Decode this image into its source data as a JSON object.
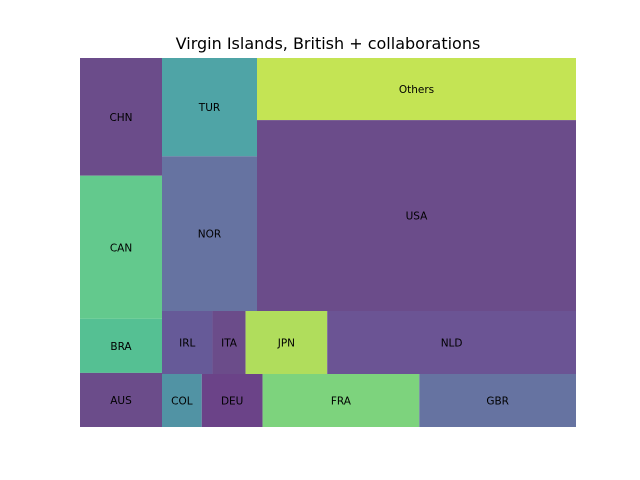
{
  "chart_data": {
    "type": "treemap",
    "title": "Virgin Islands, British + collaborations",
    "cells": [
      {
        "label": "CHN",
        "value": 37.0,
        "color": "#6b4c8a"
      },
      {
        "label": "CAN",
        "value": 45.0,
        "color": "#63c98d"
      },
      {
        "label": "BRA",
        "value": 17.0,
        "color": "#55c093"
      },
      {
        "label": "AUS",
        "value": 17.0,
        "color": "#6b4c8a"
      },
      {
        "label": "TUR",
        "value": 37.5,
        "color": "#4fa4a6"
      },
      {
        "label": "NOR",
        "value": 59.0,
        "color": "#6673a1"
      },
      {
        "label": "Others",
        "value": 82.0,
        "color": "#c4e454"
      },
      {
        "label": "USA",
        "value": 252.0,
        "color": "#6b4c8a"
      },
      {
        "label": "IRL",
        "value": 13.0,
        "color": "#665a98"
      },
      {
        "label": "ITA",
        "value": 8.5,
        "color": "#6b4c8a"
      },
      {
        "label": "JPN",
        "value": 21.0,
        "color": "#b0dd5c"
      },
      {
        "label": "NLD",
        "value": 64.0,
        "color": "#6b5494"
      },
      {
        "label": "COL",
        "value": 8.5,
        "color": "#5193a4"
      },
      {
        "label": "DEU",
        "value": 13.0,
        "color": "#6b4388"
      },
      {
        "label": "FRA",
        "value": 33.5,
        "color": "#7dd37d"
      },
      {
        "label": "GBR",
        "value": 33.5,
        "color": "#6673a1"
      }
    ]
  }
}
